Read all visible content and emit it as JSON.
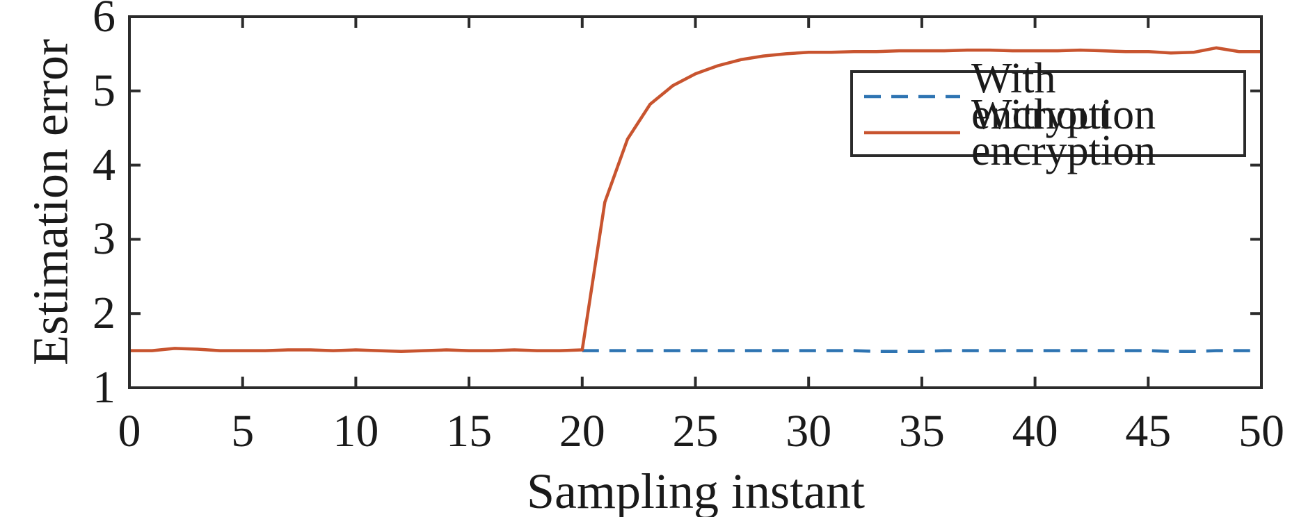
{
  "figure": {
    "background": "#ffffff"
  },
  "chart_data": {
    "type": "line",
    "title": "",
    "xlabel": "Sampling instant",
    "ylabel": "Estimation error",
    "xlim": [
      0,
      50
    ],
    "ylim": [
      1,
      6
    ],
    "x_ticks": [
      0,
      5,
      10,
      15,
      20,
      25,
      30,
      35,
      40,
      45,
      50
    ],
    "y_ticks": [
      1,
      2,
      3,
      4,
      5,
      6
    ],
    "grid": false,
    "axis_color": "#2b2b2b",
    "tick_direction": "in",
    "box": true,
    "legend": {
      "position": "upper-right",
      "border": true
    },
    "series": [
      {
        "name": "With encryption",
        "color": "#2E74B2",
        "line_style": "dashed",
        "x": [
          20,
          21,
          22,
          23,
          24,
          25,
          26,
          27,
          28,
          29,
          30,
          31,
          32,
          33,
          34,
          35,
          36,
          37,
          38,
          39,
          40,
          41,
          42,
          43,
          44,
          45,
          46,
          47,
          48,
          49,
          50
        ],
        "values": [
          1.5,
          1.5,
          1.5,
          1.5,
          1.5,
          1.5,
          1.5,
          1.5,
          1.5,
          1.5,
          1.5,
          1.5,
          1.5,
          1.49,
          1.49,
          1.49,
          1.5,
          1.5,
          1.5,
          1.5,
          1.5,
          1.5,
          1.5,
          1.5,
          1.5,
          1.5,
          1.49,
          1.49,
          1.5,
          1.5,
          1.5
        ]
      },
      {
        "name": "Without encryption",
        "color": "#C8542F",
        "line_style": "solid",
        "x": [
          0,
          1,
          2,
          3,
          4,
          5,
          6,
          7,
          8,
          9,
          10,
          11,
          12,
          13,
          14,
          15,
          16,
          17,
          18,
          19,
          20,
          21,
          22,
          23,
          24,
          25,
          26,
          27,
          28,
          29,
          30,
          31,
          32,
          33,
          34,
          35,
          36,
          37,
          38,
          39,
          40,
          41,
          42,
          43,
          44,
          45,
          46,
          47,
          48,
          49,
          50
        ],
        "values": [
          1.5,
          1.5,
          1.53,
          1.52,
          1.5,
          1.5,
          1.5,
          1.51,
          1.51,
          1.5,
          1.51,
          1.5,
          1.49,
          1.5,
          1.51,
          1.5,
          1.5,
          1.51,
          1.5,
          1.5,
          1.51,
          3.5,
          4.35,
          4.82,
          5.07,
          5.23,
          5.34,
          5.42,
          5.47,
          5.5,
          5.52,
          5.52,
          5.53,
          5.53,
          5.54,
          5.54,
          5.54,
          5.55,
          5.55,
          5.54,
          5.54,
          5.54,
          5.55,
          5.54,
          5.53,
          5.53,
          5.51,
          5.52,
          5.58,
          5.53,
          5.53
        ]
      }
    ]
  }
}
